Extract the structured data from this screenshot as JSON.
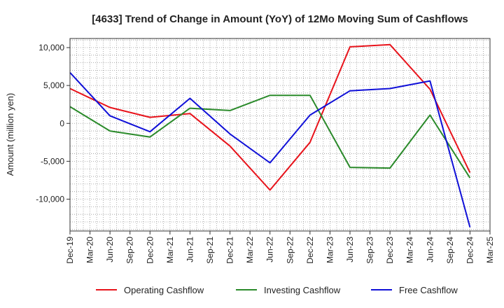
{
  "chart_data": {
    "type": "line",
    "title": "[4633]  Trend of Change in Amount (YoY) of 12Mo Moving Sum of Cashflows",
    "ylabel": "Amount (million yen)",
    "xlabel": "",
    "ylim": [
      -14200,
      11200
    ],
    "yticks": [
      10000,
      5000,
      0,
      -5000,
      -10000
    ],
    "ytick_labels": [
      "10,000",
      "5,000",
      "0",
      "-5,000",
      "-10,000"
    ],
    "categories": [
      "Dec-19",
      "Mar-20",
      "Jun-20",
      "Sep-20",
      "Dec-20",
      "Mar-21",
      "Jun-21",
      "Sep-21",
      "Dec-21",
      "Mar-22",
      "Jun-22",
      "Sep-22",
      "Dec-22",
      "Mar-23",
      "Jun-23",
      "Sep-23",
      "Dec-23",
      "Mar-24",
      "Jun-24",
      "Sep-24",
      "Dec-24",
      "Mar-25"
    ],
    "grid": true,
    "legend_position": "bottom",
    "series": [
      {
        "name": "Operating Cashflow",
        "color": "#e8131b",
        "points": [
          [
            0,
            4600
          ],
          [
            2,
            2100
          ],
          [
            4,
            800
          ],
          [
            6,
            1300
          ],
          [
            8,
            -3000
          ],
          [
            10,
            -8800
          ],
          [
            12,
            -2500
          ],
          [
            14,
            10100
          ],
          [
            16,
            10400
          ],
          [
            18,
            4500
          ],
          [
            20,
            -6500
          ]
        ]
      },
      {
        "name": "Investing Cashflow",
        "color": "#2a8a2a",
        "points": [
          [
            0,
            2200
          ],
          [
            2,
            -1000
          ],
          [
            4,
            -1800
          ],
          [
            6,
            2000
          ],
          [
            8,
            1700
          ],
          [
            10,
            3700
          ],
          [
            12,
            3700
          ],
          [
            14,
            -5800
          ],
          [
            16,
            -5900
          ],
          [
            18,
            1100
          ],
          [
            20,
            -7200
          ]
        ]
      },
      {
        "name": "Free Cashflow",
        "color": "#1010d8",
        "points": [
          [
            0,
            6700
          ],
          [
            2,
            1000
          ],
          [
            4,
            -1100
          ],
          [
            6,
            3300
          ],
          [
            8,
            -1400
          ],
          [
            10,
            -5200
          ],
          [
            12,
            1100
          ],
          [
            14,
            4300
          ],
          [
            16,
            4600
          ],
          [
            18,
            5600
          ],
          [
            20,
            -13700
          ]
        ]
      }
    ]
  }
}
